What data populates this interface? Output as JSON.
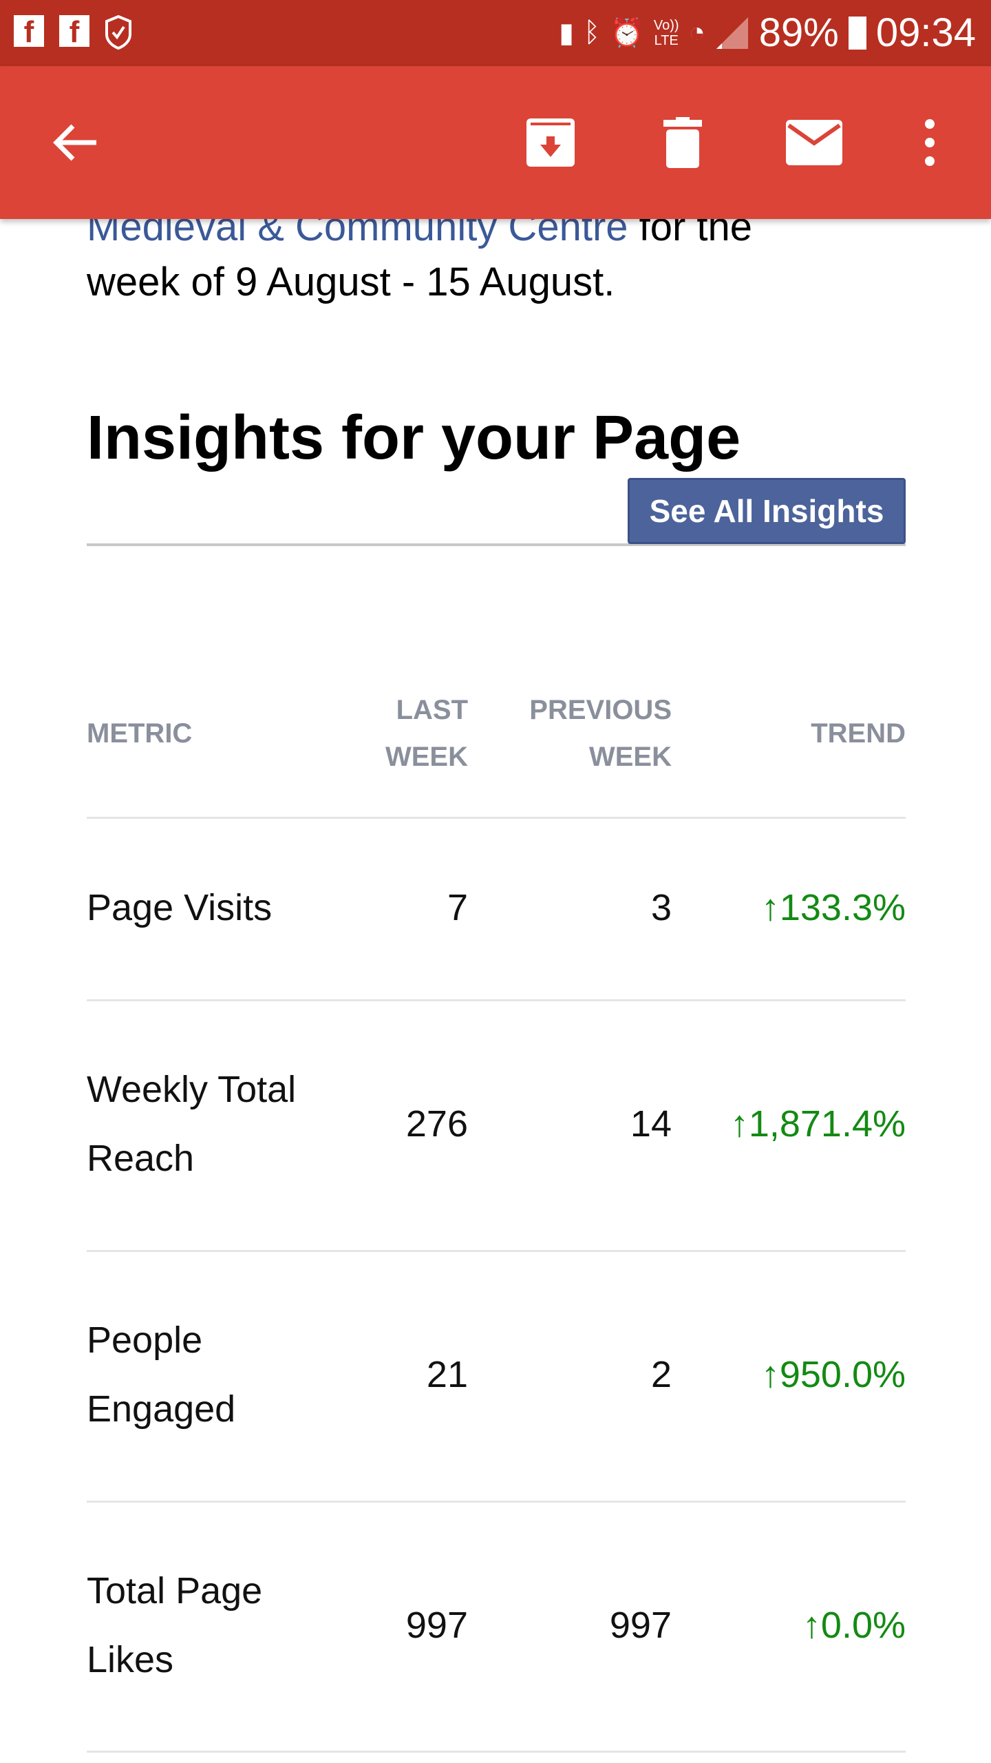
{
  "status_bar": {
    "battery": "89%",
    "time": "09:34",
    "network": "LTE",
    "volte": "Vo))"
  },
  "toolbar": {
    "back": "back",
    "archive": "archive",
    "delete": "delete",
    "mark_unread": "mark unread",
    "more": "more"
  },
  "intro": {
    "link_text": "Medieval & Community Centre",
    "after_link": " for the",
    "line2": "week of 9 August - 15 August."
  },
  "heading": "Insights for your Page",
  "see_all_button": "See All Insights",
  "table": {
    "headers": {
      "metric": "METRIC",
      "last_week_1": "LAST",
      "last_week_2": "WEEK",
      "prev_week_1": "PREVIOUS",
      "prev_week_2": "WEEK",
      "trend": "TREND"
    },
    "rows": [
      {
        "metric_1": "Page Visits",
        "metric_2": "",
        "last": "7",
        "prev": "3",
        "trend": "↑133.3%"
      },
      {
        "metric_1": "Weekly Total",
        "metric_2": "Reach",
        "last": "276",
        "prev": "14",
        "trend": "↑1,871.4%"
      },
      {
        "metric_1": "People",
        "metric_2": "Engaged",
        "last": "21",
        "prev": "2",
        "trend": "↑950.0%"
      },
      {
        "metric_1": "Total Page",
        "metric_2": "Likes",
        "last": "997",
        "prev": "997",
        "trend": "↑0.0%"
      }
    ]
  },
  "colors": {
    "status_bar": "#b72f21",
    "toolbar": "#db4437",
    "link": "#3b5998",
    "button": "#4c639b",
    "trend_up": "#138a13"
  }
}
